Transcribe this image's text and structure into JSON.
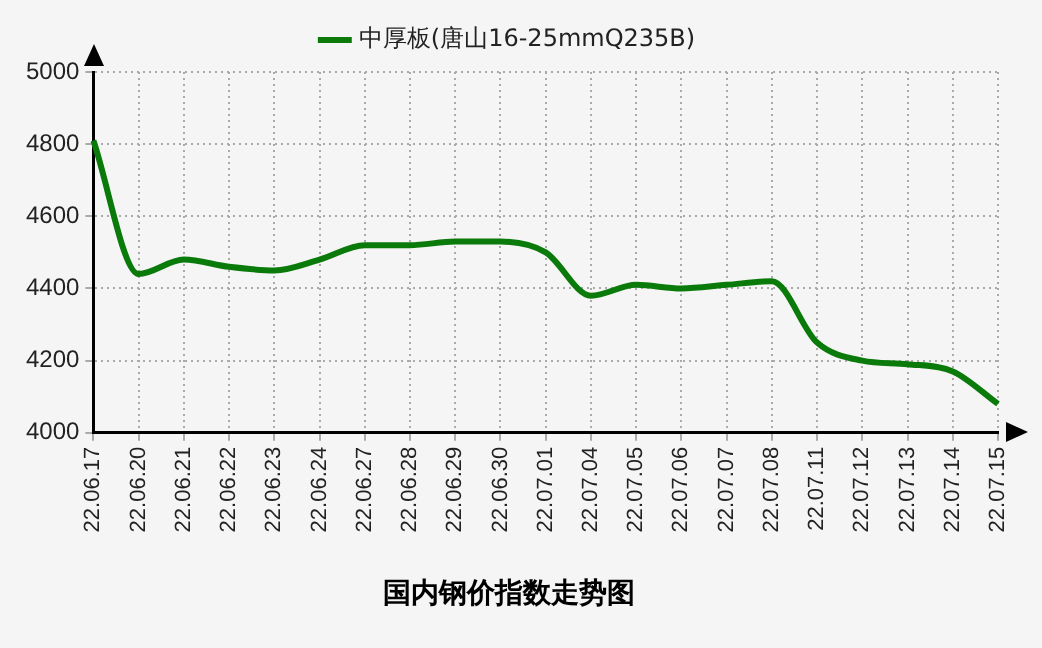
{
  "chart_data": {
    "type": "line",
    "title": "国内钢价指数走势图",
    "categories": [
      "22.06.17",
      "22.06.20",
      "22.06.21",
      "22.06.22",
      "22.06.23",
      "22.06.24",
      "22.06.27",
      "22.06.28",
      "22.06.29",
      "22.06.30",
      "22.07.01",
      "22.07.04",
      "22.07.05",
      "22.07.06",
      "22.07.07",
      "22.07.08",
      "22.07.11",
      "22.07.12",
      "22.07.13",
      "22.07.14",
      "22.07.15"
    ],
    "series": [
      {
        "name": "中厚板(唐山16-25mmQ235B)",
        "color": "#0a7a0a",
        "values": [
          4810,
          4440,
          4480,
          4460,
          4450,
          4480,
          4520,
          4520,
          4530,
          4530,
          4500,
          4380,
          4410,
          4400,
          4410,
          4420,
          4250,
          4200,
          4190,
          4170,
          4080
        ]
      }
    ],
    "ylim": [
      4000,
      5000
    ],
    "yticks": [
      4000,
      4200,
      4400,
      4600,
      4800,
      5000
    ],
    "grid": true,
    "legend": "top",
    "marker": "none",
    "line_style": "solid"
  }
}
